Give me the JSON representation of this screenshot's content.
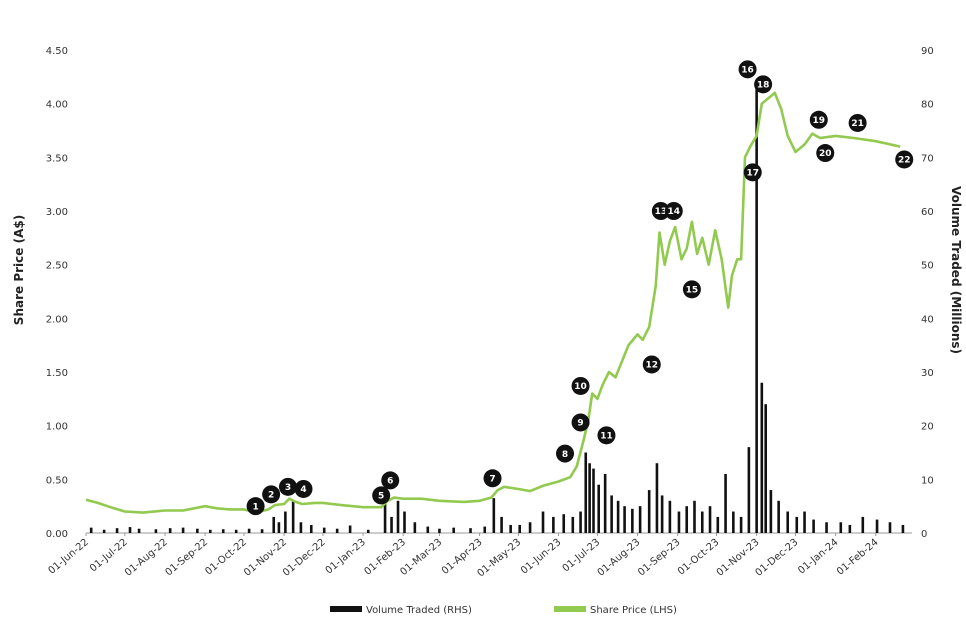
{
  "chart_data": {
    "type": "line",
    "title": "",
    "ylabel": "Share Price (A$)",
    "y2label": "Volume Traded (Millions)",
    "xlabel": "",
    "ylim": [
      0,
      4.5
    ],
    "y2lim": [
      0,
      90
    ],
    "yticks": [
      "0.00",
      "0.50",
      "1.00",
      "1.50",
      "2.00",
      "2.50",
      "3.00",
      "3.50",
      "4.00",
      "4.50"
    ],
    "y2ticks": [
      "0",
      "10",
      "20",
      "30",
      "40",
      "50",
      "60",
      "70",
      "80",
      "90"
    ],
    "xticks": [
      "01-Jun-22",
      "01-Jul-22",
      "01-Aug-22",
      "01-Sep-22",
      "01-Oct-22",
      "01-Nov-22",
      "01-Dec-22",
      "01-Jan-23",
      "01-Feb-23",
      "01-Mar-23",
      "01-Apr-23",
      "01-May-23",
      "01-Jun-23",
      "01-Jul-23",
      "01-Aug-23",
      "01-Sep-23",
      "01-Oct-23",
      "01-Nov-23",
      "01-Dec-23",
      "01-Jan-24",
      "01-Feb-24"
    ],
    "x_start": "2022-06-01",
    "x_end": "2024-02-29",
    "legend_position": "bottom",
    "grid": false,
    "colors": {
      "price": "#92c94f",
      "volume": "#111111",
      "marker": "#111111"
    },
    "series": [
      {
        "name": "Share Price (LHS)",
        "axis": "left",
        "points": [
          [
            "2022-06-01",
            0.31
          ],
          [
            "2022-06-10",
            0.28
          ],
          [
            "2022-06-20",
            0.24
          ],
          [
            "2022-07-01",
            0.2
          ],
          [
            "2022-07-15",
            0.19
          ],
          [
            "2022-08-01",
            0.21
          ],
          [
            "2022-08-15",
            0.21
          ],
          [
            "2022-09-01",
            0.25
          ],
          [
            "2022-09-10",
            0.23
          ],
          [
            "2022-09-20",
            0.22
          ],
          [
            "2022-10-01",
            0.22
          ],
          [
            "2022-10-10",
            0.19
          ],
          [
            "2022-10-20",
            0.22
          ],
          [
            "2022-10-25",
            0.26
          ],
          [
            "2022-11-01",
            0.27
          ],
          [
            "2022-11-05",
            0.32
          ],
          [
            "2022-11-10",
            0.29
          ],
          [
            "2022-11-15",
            0.27
          ],
          [
            "2022-11-25",
            0.28
          ],
          [
            "2022-12-01",
            0.28
          ],
          [
            "2022-12-15",
            0.26
          ],
          [
            "2023-01-01",
            0.24
          ],
          [
            "2023-01-15",
            0.24
          ],
          [
            "2023-01-20",
            0.3
          ],
          [
            "2023-01-25",
            0.33
          ],
          [
            "2023-02-01",
            0.32
          ],
          [
            "2023-02-15",
            0.32
          ],
          [
            "2023-03-01",
            0.3
          ],
          [
            "2023-03-20",
            0.29
          ],
          [
            "2023-04-01",
            0.3
          ],
          [
            "2023-04-10",
            0.33
          ],
          [
            "2023-04-15",
            0.4
          ],
          [
            "2023-04-20",
            0.43
          ],
          [
            "2023-05-01",
            0.41
          ],
          [
            "2023-05-10",
            0.39
          ],
          [
            "2023-05-20",
            0.44
          ],
          [
            "2023-06-01",
            0.48
          ],
          [
            "2023-06-10",
            0.52
          ],
          [
            "2023-06-15",
            0.62
          ],
          [
            "2023-06-20",
            0.85
          ],
          [
            "2023-06-24",
            1.05
          ],
          [
            "2023-06-27",
            1.3
          ],
          [
            "2023-07-01",
            1.25
          ],
          [
            "2023-07-05",
            1.38
          ],
          [
            "2023-07-10",
            1.5
          ],
          [
            "2023-07-15",
            1.45
          ],
          [
            "2023-07-20",
            1.6
          ],
          [
            "2023-07-25",
            1.75
          ],
          [
            "2023-08-01",
            1.85
          ],
          [
            "2023-08-05",
            1.8
          ],
          [
            "2023-08-10",
            1.92
          ],
          [
            "2023-08-15",
            2.3
          ],
          [
            "2023-08-18",
            2.8
          ],
          [
            "2023-08-22",
            2.5
          ],
          [
            "2023-08-26",
            2.72
          ],
          [
            "2023-08-30",
            2.85
          ],
          [
            "2023-09-04",
            2.55
          ],
          [
            "2023-09-08",
            2.65
          ],
          [
            "2023-09-12",
            2.9
          ],
          [
            "2023-09-16",
            2.6
          ],
          [
            "2023-09-20",
            2.75
          ],
          [
            "2023-09-25",
            2.5
          ],
          [
            "2023-09-30",
            2.82
          ],
          [
            "2023-10-05",
            2.55
          ],
          [
            "2023-10-10",
            2.1
          ],
          [
            "2023-10-13",
            2.4
          ],
          [
            "2023-10-17",
            2.55
          ],
          [
            "2023-10-20",
            2.55
          ],
          [
            "2023-10-23",
            3.5
          ],
          [
            "2023-10-27",
            3.6
          ],
          [
            "2023-11-01",
            3.7
          ],
          [
            "2023-11-05",
            4.0
          ],
          [
            "2023-11-10",
            4.05
          ],
          [
            "2023-11-15",
            4.1
          ],
          [
            "2023-11-20",
            3.95
          ],
          [
            "2023-11-25",
            3.7
          ],
          [
            "2023-12-01",
            3.55
          ],
          [
            "2023-12-08",
            3.62
          ],
          [
            "2023-12-14",
            3.72
          ],
          [
            "2023-12-20",
            3.68
          ],
          [
            "2024-01-01",
            3.7
          ],
          [
            "2024-01-15",
            3.68
          ],
          [
            "2024-02-01",
            3.65
          ],
          [
            "2024-02-20",
            3.6
          ]
        ]
      },
      {
        "name": "Volume Traded (RHS)",
        "axis": "right",
        "points": [
          [
            "2022-06-05",
            1.0
          ],
          [
            "2022-06-15",
            0.6
          ],
          [
            "2022-06-25",
            0.9
          ],
          [
            "2022-07-05",
            1.1
          ],
          [
            "2022-07-12",
            0.8
          ],
          [
            "2022-07-25",
            0.7
          ],
          [
            "2022-08-05",
            0.9
          ],
          [
            "2022-08-15",
            1.0
          ],
          [
            "2022-08-26",
            0.8
          ],
          [
            "2022-09-05",
            0.6
          ],
          [
            "2022-09-15",
            0.7
          ],
          [
            "2022-09-25",
            0.6
          ],
          [
            "2022-10-05",
            0.8
          ],
          [
            "2022-10-15",
            0.7
          ],
          [
            "2022-10-24",
            3.0
          ],
          [
            "2022-10-28",
            2.0
          ],
          [
            "2022-11-02",
            4.0
          ],
          [
            "2022-11-08",
            6.0
          ],
          [
            "2022-11-14",
            2.0
          ],
          [
            "2022-11-22",
            1.5
          ],
          [
            "2022-12-02",
            1.0
          ],
          [
            "2022-12-12",
            0.8
          ],
          [
            "2022-12-22",
            1.4
          ],
          [
            "2023-01-05",
            0.6
          ],
          [
            "2023-01-18",
            5.5
          ],
          [
            "2023-01-23",
            3.0
          ],
          [
            "2023-01-28",
            6.0
          ],
          [
            "2023-02-02",
            4.0
          ],
          [
            "2023-02-10",
            2.0
          ],
          [
            "2023-02-20",
            1.2
          ],
          [
            "2023-03-01",
            0.8
          ],
          [
            "2023-03-12",
            1.0
          ],
          [
            "2023-03-25",
            0.9
          ],
          [
            "2023-04-05",
            1.2
          ],
          [
            "2023-04-12",
            6.5
          ],
          [
            "2023-04-18",
            3.0
          ],
          [
            "2023-04-25",
            1.5
          ],
          [
            "2023-05-02",
            1.5
          ],
          [
            "2023-05-10",
            2.0
          ],
          [
            "2023-05-20",
            4.0
          ],
          [
            "2023-05-28",
            3.0
          ],
          [
            "2023-06-05",
            3.5
          ],
          [
            "2023-06-12",
            3.0
          ],
          [
            "2023-06-18",
            4.0
          ],
          [
            "2023-06-22",
            15.0
          ],
          [
            "2023-06-25",
            13.0
          ],
          [
            "2023-06-28",
            12.0
          ],
          [
            "2023-07-02",
            9.0
          ],
          [
            "2023-07-07",
            11.0
          ],
          [
            "2023-07-12",
            7.0
          ],
          [
            "2023-07-17",
            6.0
          ],
          [
            "2023-07-22",
            5.0
          ],
          [
            "2023-07-28",
            4.5
          ],
          [
            "2023-08-03",
            5.0
          ],
          [
            "2023-08-10",
            8.0
          ],
          [
            "2023-08-16",
            13.0
          ],
          [
            "2023-08-20",
            7.0
          ],
          [
            "2023-08-26",
            6.0
          ],
          [
            "2023-09-02",
            4.0
          ],
          [
            "2023-09-08",
            5.0
          ],
          [
            "2023-09-14",
            6.0
          ],
          [
            "2023-09-20",
            4.0
          ],
          [
            "2023-09-26",
            5.0
          ],
          [
            "2023-10-02",
            3.0
          ],
          [
            "2023-10-08",
            11.0
          ],
          [
            "2023-10-14",
            4.0
          ],
          [
            "2023-10-20",
            3.0
          ],
          [
            "2023-10-26",
            16.0
          ],
          [
            "2023-11-01",
            83.0
          ],
          [
            "2023-11-05",
            28.0
          ],
          [
            "2023-11-08",
            24.0
          ],
          [
            "2023-11-12",
            8.0
          ],
          [
            "2023-11-18",
            6.0
          ],
          [
            "2023-11-25",
            4.0
          ],
          [
            "2023-12-02",
            3.0
          ],
          [
            "2023-12-08",
            4.0
          ],
          [
            "2023-12-15",
            2.5
          ],
          [
            "2023-12-25",
            2.0
          ],
          [
            "2024-01-05",
            2.0
          ],
          [
            "2024-01-12",
            1.5
          ],
          [
            "2024-01-22",
            3.0
          ],
          [
            "2024-02-02",
            2.5
          ],
          [
            "2024-02-12",
            2.0
          ],
          [
            "2024-02-22",
            1.5
          ]
        ]
      }
    ],
    "markers": [
      {
        "label": "1",
        "date": "2022-10-10",
        "price": 0.25,
        "dx": 0,
        "dy": 0
      },
      {
        "label": "2",
        "date": "2022-10-22",
        "price": 0.36,
        "dx": 0,
        "dy": 0
      },
      {
        "label": "3",
        "date": "2022-11-04",
        "price": 0.43,
        "dx": 0,
        "dy": 0
      },
      {
        "label": "4",
        "date": "2022-11-16",
        "price": 0.41,
        "dx": 0,
        "dy": 0
      },
      {
        "label": "5",
        "date": "2023-01-15",
        "price": 0.35,
        "dx": 0,
        "dy": 0
      },
      {
        "label": "6",
        "date": "2023-01-22",
        "price": 0.49,
        "dx": 0,
        "dy": 0
      },
      {
        "label": "7",
        "date": "2023-04-11",
        "price": 0.51,
        "dx": 0,
        "dy": 0
      },
      {
        "label": "8",
        "date": "2023-06-06",
        "price": 0.74,
        "dx": 0,
        "dy": 0
      },
      {
        "label": "9",
        "date": "2023-06-18",
        "price": 1.03,
        "dx": 0,
        "dy": 0
      },
      {
        "label": "10",
        "date": "2023-06-18",
        "price": 1.37,
        "dx": 0,
        "dy": 0
      },
      {
        "label": "11",
        "date": "2023-07-08",
        "price": 0.91,
        "dx": 0,
        "dy": 0
      },
      {
        "label": "12",
        "date": "2023-08-12",
        "price": 1.57,
        "dx": 0,
        "dy": 0
      },
      {
        "label": "13",
        "date": "2023-08-19",
        "price": 3.0,
        "dx": 0,
        "dy": 0
      },
      {
        "label": "14",
        "date": "2023-08-29",
        "price": 3.0,
        "dx": 0,
        "dy": 0
      },
      {
        "label": "15",
        "date": "2023-09-12",
        "price": 2.27,
        "dx": 0,
        "dy": 0
      },
      {
        "label": "16",
        "date": "2023-10-25",
        "price": 4.32,
        "dx": 0,
        "dy": 0
      },
      {
        "label": "17",
        "date": "2023-10-29",
        "price": 3.36,
        "dx": 0,
        "dy": 0
      },
      {
        "label": "18",
        "date": "2023-11-06",
        "price": 4.18,
        "dx": 0,
        "dy": 0
      },
      {
        "label": "19",
        "date": "2023-12-19",
        "price": 3.85,
        "dx": 0,
        "dy": 0
      },
      {
        "label": "20",
        "date": "2023-12-24",
        "price": 3.54,
        "dx": 0,
        "dy": 0
      },
      {
        "label": "21",
        "date": "2024-01-18",
        "price": 3.82,
        "dx": 0,
        "dy": 0
      },
      {
        "label": "22",
        "date": "2024-02-23",
        "price": 3.48,
        "dx": 0,
        "dy": 0
      }
    ]
  }
}
